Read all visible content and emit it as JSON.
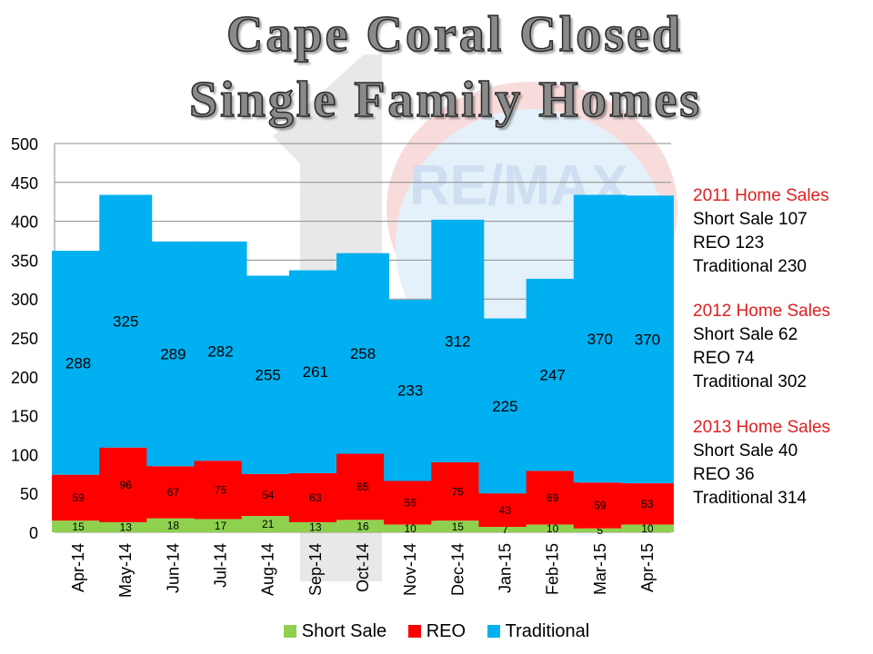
{
  "title_line1": "Cape Coral Closed",
  "title_line2": "Single Family Homes",
  "chart_data": {
    "type": "bar",
    "stacked": true,
    "categories": [
      "Apr-14",
      "May-14",
      "Jun-14",
      "Jul-14",
      "Aug-14",
      "Sep-14",
      "Oct-14",
      "Nov-14",
      "Dec-14",
      "Jan-15",
      "Feb-15",
      "Mar-15",
      "Apr-15"
    ],
    "series": [
      {
        "name": "Short Sale",
        "color": "#8fd14f",
        "values": [
          15,
          13,
          18,
          17,
          21,
          13,
          16,
          10,
          15,
          7,
          10,
          5,
          10
        ]
      },
      {
        "name": "REO",
        "color": "#ff0000",
        "values": [
          59,
          96,
          67,
          75,
          54,
          63,
          85,
          56,
          75,
          43,
          69,
          59,
          53
        ]
      },
      {
        "name": "Traditional",
        "color": "#00b0f0",
        "values": [
          288,
          325,
          289,
          282,
          255,
          261,
          258,
          233,
          312,
          225,
          247,
          370,
          370
        ]
      }
    ],
    "ylim": [
      0,
      500
    ],
    "yticks": [
      0,
      50,
      100,
      150,
      200,
      250,
      300,
      350,
      400,
      450,
      500
    ],
    "grid": true,
    "legend_position": "bottom"
  },
  "side_stats": [
    {
      "header": "2011 Home  Sales",
      "lines": [
        "Short Sale 107",
        "REO 123",
        "Traditional  230"
      ]
    },
    {
      "header": "2012 Home  Sales",
      "lines": [
        "Short Sale 62",
        "REO 74",
        "Traditional 302"
      ]
    },
    {
      "header": "2013 Home  Sales",
      "lines": [
        "Short Sale 40",
        "REO 36",
        "Traditional 314"
      ]
    }
  ]
}
